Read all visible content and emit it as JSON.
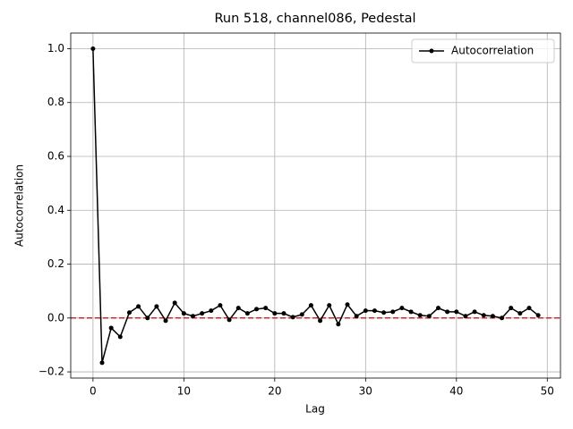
{
  "chart_data": {
    "type": "line",
    "title": "Run 518, channel086, Pedestal",
    "xlabel": "Lag",
    "ylabel": "Autocorrelation",
    "x": [
      0,
      1,
      2,
      3,
      4,
      5,
      6,
      7,
      8,
      9,
      10,
      11,
      12,
      13,
      14,
      15,
      16,
      17,
      18,
      19,
      20,
      21,
      22,
      23,
      24,
      25,
      26,
      27,
      28,
      29,
      30,
      31,
      32,
      33,
      34,
      35,
      36,
      37,
      38,
      39,
      40,
      41,
      42,
      43,
      44,
      45,
      46,
      47,
      48,
      49
    ],
    "series": [
      {
        "name": "Autocorrelation",
        "color": "#000000",
        "values": [
          1.0,
          -0.166,
          -0.037,
          -0.07,
          0.02,
          0.043,
          0.0,
          0.043,
          -0.01,
          0.056,
          0.017,
          0.007,
          0.017,
          0.027,
          0.047,
          -0.007,
          0.037,
          0.017,
          0.033,
          0.037,
          0.017,
          0.017,
          0.003,
          0.013,
          0.047,
          -0.01,
          0.047,
          -0.023,
          0.05,
          0.007,
          0.027,
          0.027,
          0.02,
          0.023,
          0.037,
          0.023,
          0.01,
          0.007,
          0.037,
          0.023,
          0.023,
          0.007,
          0.023,
          0.01,
          0.007,
          0.0,
          0.037,
          0.017,
          0.037,
          0.01
        ]
      }
    ],
    "hline": 0,
    "hline_color": "#d62728",
    "xlim": [
      -2.45,
      51.45
    ],
    "ylim": [
      -0.223,
      1.058
    ],
    "xticks": [
      0,
      10,
      20,
      30,
      40,
      50
    ],
    "yticks": [
      {
        "value": -0.2,
        "label": "−0.2"
      },
      {
        "value": 0,
        "label": "0.0"
      },
      {
        "value": 0.2,
        "label": "0.2"
      },
      {
        "value": 0.4,
        "label": "0.4"
      },
      {
        "value": 0.6,
        "label": "0.6"
      },
      {
        "value": 0.8,
        "label": "0.8"
      },
      {
        "value": 1.0,
        "label": "1.0"
      }
    ],
    "grid": true,
    "legend": "upper right"
  }
}
